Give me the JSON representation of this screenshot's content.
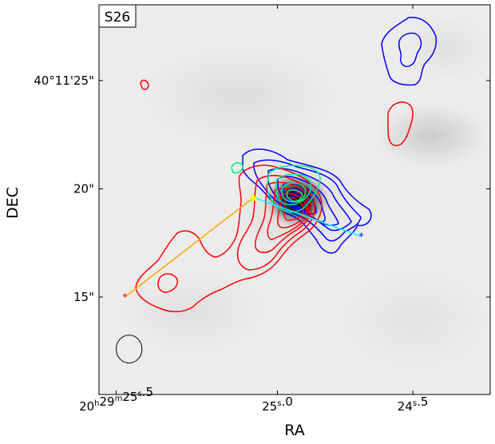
{
  "chart_data": {
    "type": "contour",
    "panel_label": "S26",
    "xlabel": "RA",
    "ylabel": "DEC",
    "xlim_arcsec_offset": [
      -8.3,
      9.9
    ],
    "ylim_arcsec_offset": [
      -4.5,
      13.5
    ],
    "x_ticks": [
      {
        "offset": -7.5,
        "h": "20",
        "m": "29",
        "s": "25.5"
      },
      {
        "offset": 0.0,
        "h": "",
        "m": "",
        "s": "25.0"
      },
      {
        "offset": 6.3,
        "h": "",
        "m": "",
        "s": "24.5"
      }
    ],
    "y_ticks": [
      {
        "offset": 10.0,
        "label": "40°11′25″"
      },
      {
        "offset": 5.0,
        "label": "20″"
      },
      {
        "offset": 0.0,
        "label": "15″"
      }
    ],
    "grid": false,
    "colors": {
      "red_contours": "#ff0000",
      "blue_contours": "#0000ff",
      "green_contours": "#00ee88",
      "outflow_red_axis": "#ffa500",
      "outflow_blue_axis": "#00ffff",
      "source_star": "#ffff00",
      "beam": "#000000"
    },
    "source_position": {
      "x": -1.1,
      "y": 4.6
    },
    "outflow_axes": [
      {
        "name": "redshifted",
        "color": "#ffa500",
        "from": {
          "x": -1.1,
          "y": 4.6
        },
        "to": {
          "x": -7.1,
          "y": 0.0
        }
      },
      {
        "name": "blueshifted",
        "color": "#00ffff",
        "from": {
          "x": -1.1,
          "y": 4.6
        },
        "to": {
          "x": 3.9,
          "y": 2.8
        }
      }
    ],
    "beam": {
      "x": -6.9,
      "y": -2.4,
      "major_arcsec": 1.3,
      "minor_arcsec": 1.2,
      "pa_deg": 90
    }
  }
}
